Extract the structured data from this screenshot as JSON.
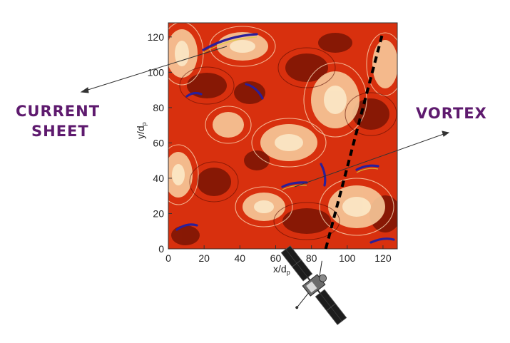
{
  "annotations": {
    "current_sheet_line1": "CURRENT",
    "current_sheet_line2": "SHEET",
    "vortex": "VORTEX"
  },
  "plot": {
    "xlabel": "x/d",
    "xlabel_sub": "p",
    "ylabel": "y/d",
    "ylabel_sub": "p",
    "xlim": [
      0,
      128
    ],
    "ylim": [
      0,
      128
    ],
    "xticks": [
      "0",
      "20",
      "40",
      "60",
      "80",
      "100",
      "120"
    ],
    "yticks": [
      "0",
      "20",
      "40",
      "60",
      "80",
      "100",
      "120"
    ],
    "colors": {
      "background": "#d8300e",
      "dark": "#7a1404",
      "light": "#f7c99a",
      "pale": "#fbe6c4",
      "sheet": "#2a1f9a"
    }
  },
  "trajectory": {
    "start": [
      88,
      0
    ],
    "end": [
      120,
      123
    ]
  }
}
